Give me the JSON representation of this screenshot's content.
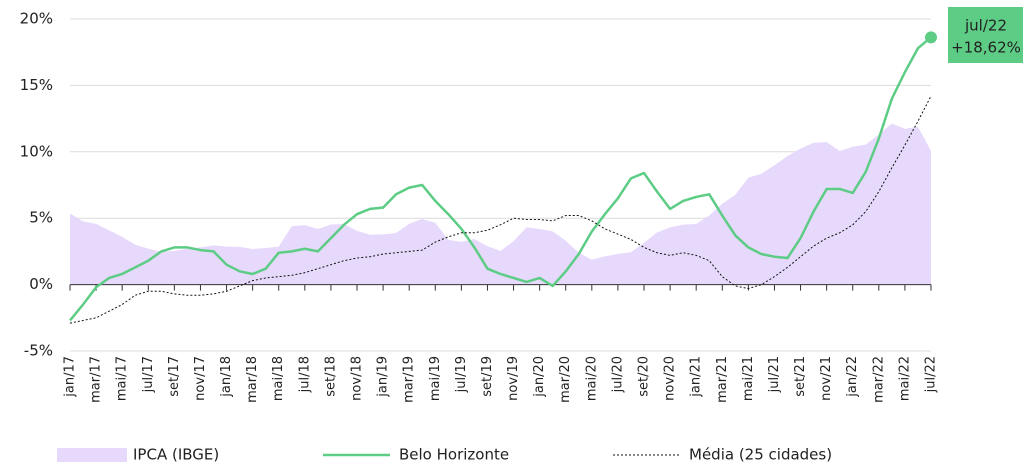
{
  "chart_data": {
    "type": "line",
    "categories": [
      "jan/17",
      null,
      "mar/17",
      null,
      "mai/17",
      null,
      "jul/17",
      null,
      "set/17",
      null,
      "nov/17",
      null,
      "jan/18",
      null,
      "mar/18",
      null,
      "mai/18",
      null,
      "jul/18",
      null,
      "set/18",
      null,
      "nov/18",
      null,
      "jan/19",
      null,
      "mar/19",
      null,
      "mai/19",
      null,
      "jul/19",
      null,
      "set/19",
      null,
      "nov/19",
      null,
      "jan/20",
      null,
      "mar/20",
      null,
      "mai/20",
      null,
      "jul/20",
      null,
      "set/20",
      null,
      "nov/20",
      null,
      "jan/21",
      null,
      "mar/21",
      null,
      "mai/21",
      null,
      "jul/21",
      null,
      "set/21",
      null,
      "nov/21",
      null,
      "jan/22",
      null,
      "mar/22",
      null,
      "mai/22",
      null,
      "jul/22"
    ],
    "series": [
      {
        "name": "IPCA (IBGE)",
        "kind": "area",
        "color": "#e6d9fb",
        "values": [
          5.35,
          4.76,
          4.57,
          4.08,
          3.6,
          3.0,
          2.71,
          2.46,
          2.54,
          2.7,
          2.8,
          2.95,
          2.86,
          2.84,
          2.68,
          2.76,
          2.86,
          4.39,
          4.48,
          4.19,
          4.53,
          4.56,
          4.05,
          3.75,
          3.78,
          3.89,
          4.58,
          4.94,
          4.66,
          3.37,
          3.22,
          3.43,
          2.89,
          2.54,
          3.27,
          4.31,
          4.19,
          4.01,
          3.3,
          2.4,
          1.88,
          2.13,
          2.31,
          2.44,
          3.14,
          3.92,
          4.31,
          4.52,
          4.56,
          5.2,
          6.1,
          6.76,
          8.06,
          8.35,
          8.99,
          9.68,
          10.25,
          10.67,
          10.74,
          10.06,
          10.38,
          10.54,
          11.3,
          12.13,
          11.73,
          11.89,
          10.07
        ]
      },
      {
        "name": "Belo Horizonte",
        "kind": "line",
        "color": "#5dcc85",
        "values": [
          -2.7,
          -1.5,
          -0.2,
          0.5,
          0.8,
          1.3,
          1.8,
          2.5,
          2.8,
          2.8,
          2.6,
          2.5,
          1.5,
          1.0,
          0.8,
          1.2,
          2.4,
          2.5,
          2.7,
          2.5,
          3.5,
          4.5,
          5.3,
          5.7,
          5.8,
          6.8,
          7.3,
          7.5,
          6.3,
          5.3,
          4.2,
          2.8,
          1.2,
          0.8,
          0.5,
          0.2,
          0.5,
          -0.1,
          1.0,
          2.3,
          4.0,
          5.3,
          6.5,
          8.0,
          8.4,
          7.0,
          5.7,
          6.3,
          6.6,
          6.8,
          5.2,
          3.7,
          2.8,
          2.3,
          2.1,
          2.0,
          3.5,
          5.5,
          7.2,
          7.2,
          6.9,
          8.5,
          11.0,
          14.0,
          16.0,
          17.8,
          18.62
        ],
        "value_labels": [
          null,
          null,
          null,
          null,
          null,
          null,
          null,
          null,
          null,
          null,
          null,
          null,
          null,
          null,
          null,
          null,
          null,
          null,
          null,
          null,
          null,
          null,
          null,
          null,
          null,
          null,
          null,
          null,
          null,
          null,
          null,
          null,
          null,
          null,
          null,
          null,
          null,
          null,
          null,
          null,
          null,
          null,
          null,
          null,
          null,
          null,
          null,
          null,
          null,
          null,
          null,
          null,
          null,
          null,
          null,
          null,
          null,
          null,
          null,
          null,
          null,
          null,
          null,
          null,
          null,
          null,
          "+18,62%"
        ]
      },
      {
        "name": "Média (25 cidades)",
        "kind": "dotted",
        "color": "#111111",
        "values": [
          -2.9,
          -2.7,
          -2.5,
          -2.0,
          -1.5,
          -0.8,
          -0.5,
          -0.5,
          -0.7,
          -0.8,
          -0.8,
          -0.7,
          -0.5,
          -0.1,
          0.3,
          0.5,
          0.6,
          0.7,
          0.9,
          1.2,
          1.5,
          1.8,
          2.0,
          2.1,
          2.3,
          2.4,
          2.5,
          2.6,
          3.2,
          3.6,
          3.9,
          3.9,
          4.1,
          4.5,
          5.0,
          4.9,
          4.9,
          4.8,
          5.2,
          5.2,
          4.8,
          4.2,
          3.8,
          3.4,
          2.8,
          2.4,
          2.2,
          2.4,
          2.2,
          1.8,
          0.6,
          -0.1,
          -0.3,
          0.0,
          0.6,
          1.3,
          2.1,
          2.9,
          3.5,
          3.9,
          4.5,
          5.5,
          7.0,
          8.8,
          10.5,
          12.3,
          14.2
        ]
      }
    ],
    "annotation": "jul/22",
    "ylim": [
      -5,
      20
    ],
    "yticks": [
      {
        "value": -5,
        "label": "-5%"
      },
      {
        "value": 0,
        "label": "0%"
      },
      {
        "value": 5,
        "label": "5%"
      },
      {
        "value": 10,
        "label": "10%"
      },
      {
        "value": 15,
        "label": "15%"
      },
      {
        "value": 20,
        "label": "20%"
      }
    ],
    "grid": true
  }
}
